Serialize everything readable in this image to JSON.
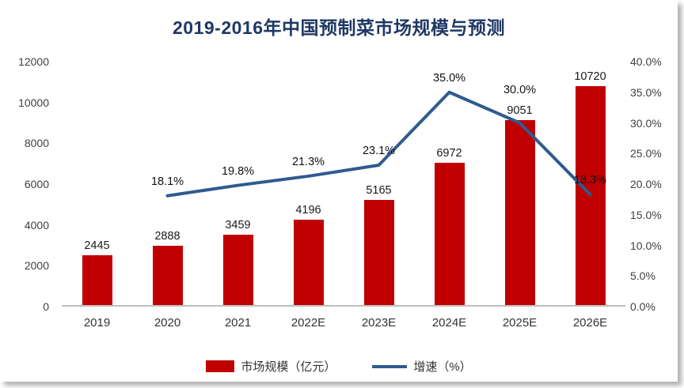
{
  "chart_data": {
    "type": "bar+line",
    "title": "2019-2016年中国预制菜市场规模与预测",
    "categories": [
      "2019",
      "2020",
      "2021",
      "2022E",
      "2023E",
      "2024E",
      "2025E",
      "2026E"
    ],
    "series": [
      {
        "name": "市场规模（亿元）",
        "type": "bar",
        "axis": "left",
        "color": "#C00000",
        "values": [
          2445,
          2888,
          3459,
          4196,
          5165,
          6972,
          9051,
          10720
        ]
      },
      {
        "name": "增速（%）",
        "type": "line",
        "axis": "right",
        "color": "#2F5B8F",
        "values": [
          null,
          18.1,
          19.8,
          21.3,
          23.1,
          35.0,
          30.0,
          18.3
        ]
      }
    ],
    "left_axis": {
      "min": 0,
      "max": 12000,
      "step": 2000,
      "ticks": [
        "0",
        "2000",
        "4000",
        "6000",
        "8000",
        "10000",
        "12000"
      ]
    },
    "right_axis": {
      "min": 0,
      "max": 40,
      "step": 5,
      "ticks": [
        "0.0%",
        "5.0%",
        "10.0%",
        "15.0%",
        "20.0%",
        "25.0%",
        "30.0%",
        "35.0%",
        "40.0%"
      ]
    },
    "legend_position": "bottom",
    "grid": false
  }
}
